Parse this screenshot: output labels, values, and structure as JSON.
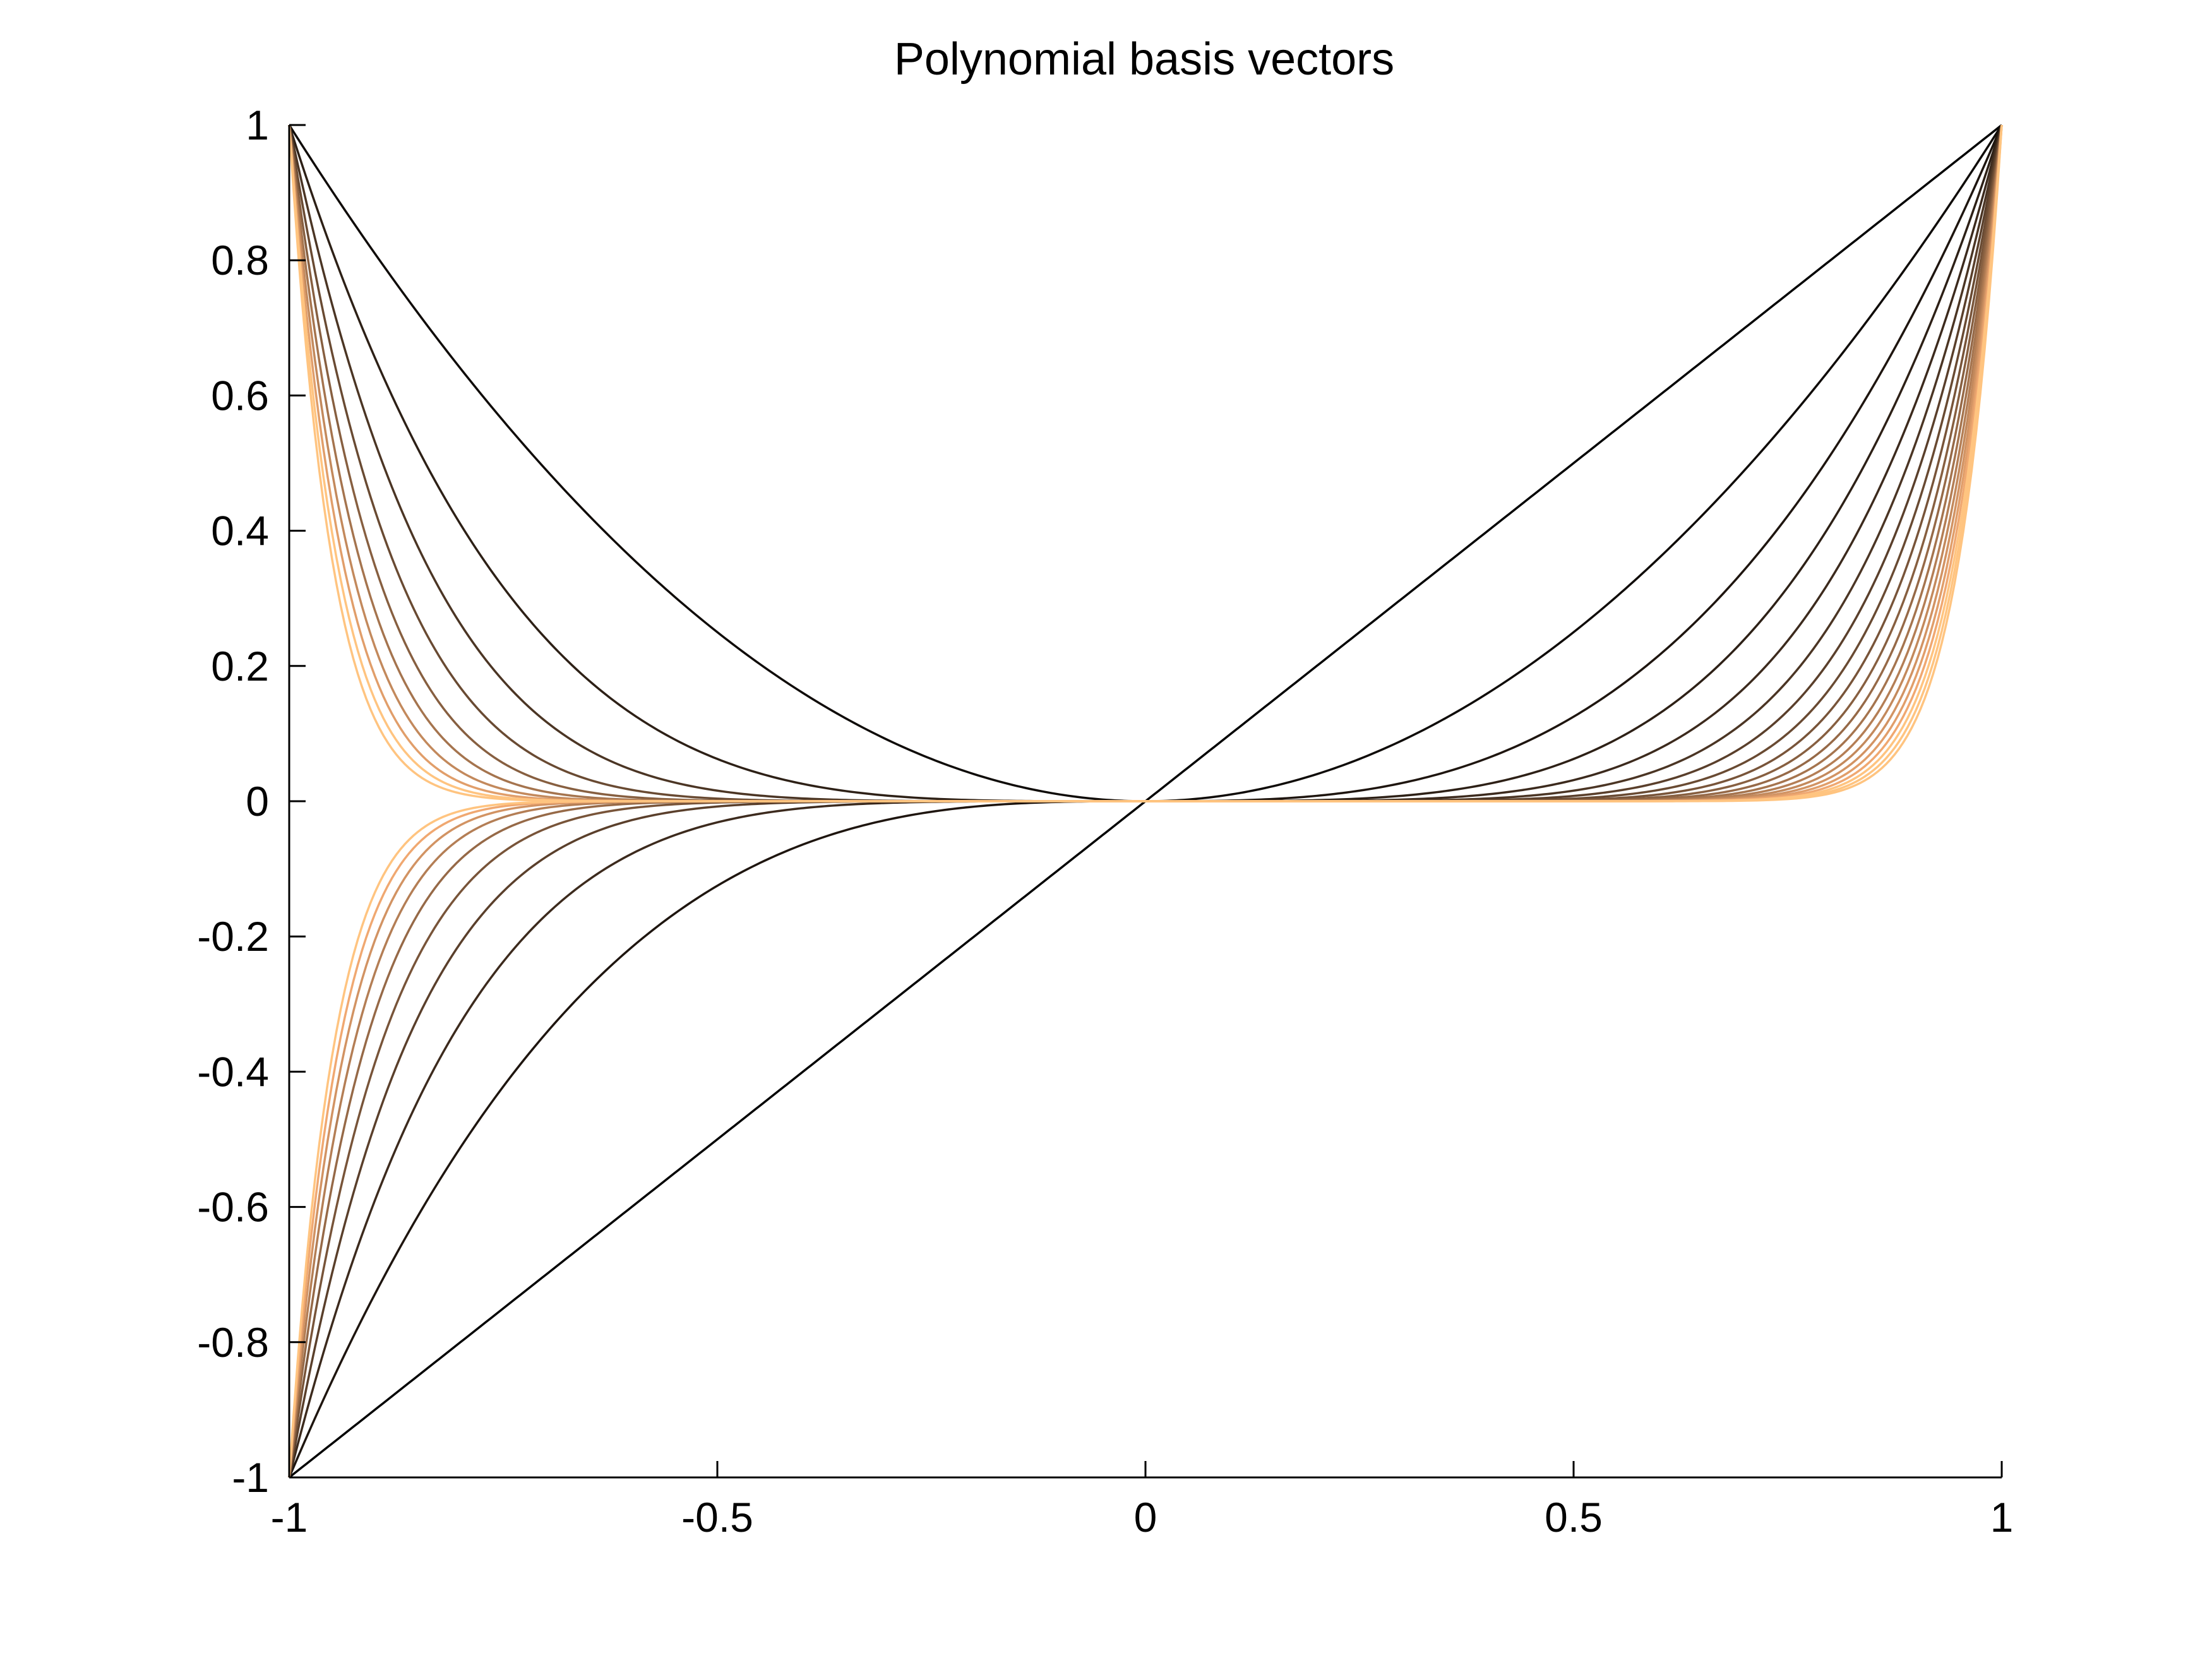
{
  "chart_data": {
    "type": "line",
    "title": "Polynomial basis vectors",
    "xlabel": "",
    "ylabel": "",
    "xlim": [
      -1,
      1
    ],
    "ylim": [
      -1,
      1
    ],
    "x_ticks": [
      "-1",
      "-0.5",
      "0",
      "0.5",
      "1"
    ],
    "x_tick_values": [
      -1,
      -0.5,
      0,
      0.5,
      1
    ],
    "y_ticks": [
      "1",
      "0.8",
      "0.6",
      "0.4",
      "0.2",
      "0",
      "-0.2",
      "-0.4",
      "-0.6",
      "-0.8",
      "-1"
    ],
    "y_tick_values": [
      1,
      0.8,
      0.6,
      0.4,
      0.2,
      0,
      -0.2,
      -0.4,
      -0.6,
      -0.8,
      -1
    ],
    "grid": false,
    "legend": "none",
    "x": [
      -1,
      -0.95,
      -0.9,
      -0.85,
      -0.8,
      -0.75,
      -0.7,
      -0.65,
      -0.6,
      -0.55,
      -0.5,
      -0.45,
      -0.4,
      -0.35,
      -0.3,
      -0.25,
      -0.2,
      -0.15,
      -0.1,
      -0.05,
      0,
      0.05,
      0.1,
      0.15,
      0.2,
      0.25,
      0.3,
      0.35,
      0.4,
      0.45,
      0.5,
      0.55,
      0.6,
      0.65,
      0.7,
      0.75,
      0.8,
      0.85,
      0.9,
      0.95,
      1
    ],
    "series": [
      {
        "exponent": 1,
        "color": "#000000",
        "values": [
          -1,
          -0.95,
          -0.9,
          -0.85,
          -0.8,
          -0.75,
          -0.7,
          -0.65,
          -0.6,
          -0.55,
          -0.5,
          -0.45,
          -0.4,
          -0.35,
          -0.3,
          -0.25,
          -0.2,
          -0.15,
          -0.1,
          -0.05,
          0,
          0.05,
          0.1,
          0.15,
          0.2,
          0.25,
          0.3,
          0.35,
          0.4,
          0.45,
          0.5,
          0.55,
          0.6,
          0.65,
          0.7,
          0.75,
          0.8,
          0.85,
          0.9,
          0.95,
          1
        ]
      },
      {
        "exponent": 2,
        "color": "#0f0b08",
        "values": [
          1,
          0.9025,
          0.81,
          0.7225,
          0.64,
          0.5625,
          0.49,
          0.4225,
          0.36,
          0.3025,
          0.25,
          0.2025,
          0.16,
          0.1225,
          0.09,
          0.0625,
          0.04,
          0.0225,
          0.01,
          0.0025,
          0,
          0.0025,
          0.01,
          0.0225,
          0.04,
          0.0625,
          0.09,
          0.1225,
          0.16,
          0.2025,
          0.25,
          0.3025,
          0.36,
          0.4225,
          0.49,
          0.5625,
          0.64,
          0.7225,
          0.81,
          0.9025,
          1
        ]
      },
      {
        "exponent": 3,
        "color": "#1e150f",
        "values": [
          -1,
          -0.857,
          -0.729,
          -0.614,
          -0.512,
          -0.422,
          -0.343,
          -0.275,
          -0.216,
          -0.166,
          -0.125,
          -0.091,
          -0.064,
          -0.043,
          -0.027,
          -0.016,
          -0.008,
          -0.003,
          -0.001,
          -0.0001,
          0,
          0.0001,
          0.001,
          0.003,
          0.008,
          0.016,
          0.027,
          0.043,
          0.064,
          0.091,
          0.125,
          0.166,
          0.216,
          0.275,
          0.343,
          0.422,
          0.512,
          0.614,
          0.729,
          0.857,
          1
        ]
      },
      {
        "exponent": 4,
        "color": "#2d2016",
        "values": [
          1,
          0.815,
          0.656,
          0.522,
          0.41,
          0.316,
          0.24,
          0.179,
          0.13,
          0.092,
          0.063,
          0.041,
          0.026,
          0.015,
          0.008,
          0.004,
          0.002,
          0.001,
          0.0001,
          0,
          0,
          0,
          0.0001,
          0.001,
          0.002,
          0.004,
          0.008,
          0.015,
          0.026,
          0.041,
          0.063,
          0.092,
          0.13,
          0.179,
          0.24,
          0.316,
          0.41,
          0.522,
          0.656,
          0.815,
          1
        ]
      },
      {
        "exponent": 5,
        "color": "#3c2a1d",
        "values": [
          -1,
          -0.774,
          -0.59,
          -0.444,
          -0.328,
          -0.237,
          -0.168,
          -0.116,
          -0.078,
          -0.05,
          -0.031,
          -0.018,
          -0.01,
          -0.005,
          -0.002,
          -0.001,
          -0.0003,
          -0.0001,
          0,
          0,
          0,
          0,
          0,
          0.0001,
          0.0003,
          0.001,
          0.002,
          0.005,
          0.01,
          0.018,
          0.031,
          0.05,
          0.078,
          0.116,
          0.168,
          0.237,
          0.328,
          0.444,
          0.59,
          0.774,
          1
        ]
      },
      {
        "exponent": 6,
        "color": "#4b3524",
        "values": [
          1,
          0.735,
          0.531,
          0.377,
          0.262,
          0.178,
          0.118,
          0.075,
          0.047,
          0.028,
          0.016,
          0.008,
          0.004,
          0.002,
          0.001,
          0.0002,
          0.0001,
          0,
          0,
          0,
          0,
          0,
          0,
          0,
          0.0001,
          0.0002,
          0.001,
          0.002,
          0.004,
          0.008,
          0.016,
          0.028,
          0.047,
          0.075,
          0.118,
          0.178,
          0.262,
          0.377,
          0.531,
          0.735,
          1
        ]
      },
      {
        "exponent": 7,
        "color": "#5a3f2b",
        "values": [
          -1,
          -0.698,
          -0.478,
          -0.321,
          -0.21,
          -0.133,
          -0.082,
          -0.049,
          -0.028,
          -0.015,
          -0.008,
          -0.004,
          -0.002,
          -0.001,
          -0.0002,
          -0.0001,
          0,
          0,
          0,
          0,
          0,
          0,
          0,
          0,
          0,
          0.0001,
          0.0002,
          0.001,
          0.002,
          0.004,
          0.008,
          0.015,
          0.028,
          0.049,
          0.082,
          0.133,
          0.21,
          0.321,
          0.478,
          0.698,
          1
        ]
      },
      {
        "exponent": 8,
        "color": "#694a32",
        "values": [
          1,
          0.663,
          0.43,
          0.272,
          0.168,
          0.1,
          0.058,
          0.032,
          0.017,
          0.008,
          0.004,
          0.002,
          0.001,
          0.0002,
          0.0001,
          0,
          0,
          0,
          0,
          0,
          0,
          0,
          0,
          0,
          0,
          0,
          0.0001,
          0.0002,
          0.001,
          0.002,
          0.004,
          0.008,
          0.017,
          0.032,
          0.058,
          0.1,
          0.168,
          0.272,
          0.43,
          0.663,
          1
        ]
      },
      {
        "exponent": 9,
        "color": "#785439",
        "values": [
          -1,
          -0.63,
          -0.387,
          -0.232,
          -0.134,
          -0.075,
          -0.04,
          -0.021,
          -0.01,
          -0.005,
          -0.002,
          -0.001,
          -0.0003,
          -0.0001,
          0,
          0,
          0,
          0,
          0,
          0,
          0,
          0,
          0,
          0,
          0,
          0,
          0,
          0.0001,
          0.0003,
          0.001,
          0.002,
          0.005,
          0.01,
          0.021,
          0.04,
          0.075,
          0.134,
          0.232,
          0.387,
          0.63,
          1
        ]
      },
      {
        "exponent": 10,
        "color": "#875f40",
        "values": [
          1,
          0.599,
          0.349,
          0.197,
          0.107,
          0.056,
          0.028,
          0.013,
          0.006,
          0.003,
          0.001,
          0.0003,
          0.0001,
          0,
          0,
          0,
          0,
          0,
          0,
          0,
          0,
          0,
          0,
          0,
          0,
          0,
          0,
          0,
          0.0001,
          0.0003,
          0.001,
          0.003,
          0.006,
          0.013,
          0.028,
          0.056,
          0.107,
          0.197,
          0.349,
          0.599,
          1
        ]
      },
      {
        "exponent": 11,
        "color": "#966947",
        "values": [
          -1,
          -0.569,
          -0.314,
          -0.167,
          -0.086,
          -0.042,
          -0.02,
          -0.009,
          -0.004,
          -0.001,
          -0.0005,
          -0.0002,
          0,
          0,
          0,
          0,
          0,
          0,
          0,
          0,
          0,
          0,
          0,
          0,
          0,
          0,
          0,
          0,
          0,
          0.0002,
          0.0005,
          0.001,
          0.004,
          0.009,
          0.02,
          0.042,
          0.086,
          0.167,
          0.314,
          0.569,
          1
        ]
      },
      {
        "exponent": 12,
        "color": "#a5744e",
        "values": [
          1,
          0.54,
          0.282,
          0.142,
          0.069,
          0.032,
          0.014,
          0.006,
          0.002,
          0.001,
          0.0002,
          0.0001,
          0,
          0,
          0,
          0,
          0,
          0,
          0,
          0,
          0,
          0,
          0,
          0,
          0,
          0,
          0,
          0,
          0,
          0.0001,
          0.0002,
          0.001,
          0.002,
          0.006,
          0.014,
          0.032,
          0.069,
          0.142,
          0.282,
          0.54,
          1
        ]
      },
      {
        "exponent": 13,
        "color": "#b47e55",
        "values": [
          -1,
          -0.513,
          -0.254,
          -0.121,
          -0.055,
          -0.024,
          -0.01,
          -0.004,
          -0.001,
          -0.0004,
          -0.0001,
          0,
          0,
          0,
          0,
          0,
          0,
          0,
          0,
          0,
          0,
          0,
          0,
          0,
          0,
          0,
          0,
          0,
          0,
          0,
          0.0001,
          0.0004,
          0.001,
          0.004,
          0.01,
          0.024,
          0.055,
          0.121,
          0.254,
          0.513,
          1
        ]
      },
      {
        "exponent": 14,
        "color": "#c3895c",
        "values": [
          1,
          0.488,
          0.229,
          0.103,
          0.044,
          0.018,
          0.007,
          0.002,
          0.001,
          0.0002,
          0.0001,
          0,
          0,
          0,
          0,
          0,
          0,
          0,
          0,
          0,
          0,
          0,
          0,
          0,
          0,
          0,
          0,
          0,
          0,
          0,
          0.0001,
          0.0002,
          0.001,
          0.002,
          0.007,
          0.018,
          0.044,
          0.103,
          0.229,
          0.488,
          1
        ]
      },
      {
        "exponent": 15,
        "color": "#d29363",
        "values": [
          -1,
          -0.463,
          -0.206,
          -0.087,
          -0.035,
          -0.013,
          -0.005,
          -0.002,
          -0.0005,
          -0.0001,
          0,
          0,
          0,
          0,
          0,
          0,
          0,
          0,
          0,
          0,
          0,
          0,
          0,
          0,
          0,
          0,
          0,
          0,
          0,
          0,
          0,
          0.0001,
          0.0005,
          0.002,
          0.005,
          0.013,
          0.035,
          0.087,
          0.206,
          0.463,
          1
        ]
      },
      {
        "exponent": 16,
        "color": "#e19e6a",
        "values": [
          1,
          0.44,
          0.185,
          0.074,
          0.028,
          0.01,
          0.003,
          0.001,
          0.0003,
          0.0001,
          0,
          0,
          0,
          0,
          0,
          0,
          0,
          0,
          0,
          0,
          0,
          0,
          0,
          0,
          0,
          0,
          0,
          0,
          0,
          0,
          0,
          0.0001,
          0.0003,
          0.001,
          0.003,
          0.01,
          0.028,
          0.074,
          0.185,
          0.44,
          1
        ]
      },
      {
        "exponent": 17,
        "color": "#f0a871",
        "values": [
          -1,
          -0.418,
          -0.167,
          -0.063,
          -0.023,
          -0.008,
          -0.002,
          -0.001,
          -0.0002,
          0,
          0,
          0,
          0,
          0,
          0,
          0,
          0,
          0,
          0,
          0,
          0,
          0,
          0,
          0,
          0,
          0,
          0,
          0,
          0,
          0,
          0,
          0,
          0.0002,
          0.001,
          0.002,
          0.008,
          0.023,
          0.063,
          0.167,
          0.418,
          1
        ]
      },
      {
        "exponent": 18,
        "color": "#ffc480",
        "values": [
          1,
          0.397,
          0.15,
          0.054,
          0.018,
          0.006,
          0.002,
          0.0004,
          0.0001,
          0,
          0,
          0,
          0,
          0,
          0,
          0,
          0,
          0,
          0,
          0,
          0,
          0,
          0,
          0,
          0,
          0,
          0,
          0,
          0,
          0,
          0,
          0,
          0.0001,
          0.0004,
          0.002,
          0.006,
          0.018,
          0.054,
          0.15,
          0.397,
          1
        ]
      },
      {
        "exponent": 19,
        "color": "#ffc480",
        "values": [
          -1,
          -0.377,
          -0.135,
          -0.046,
          -0.014,
          -0.004,
          -0.001,
          -0.0003,
          0,
          0,
          0,
          0,
          0,
          0,
          0,
          0,
          0,
          0,
          0,
          0,
          0,
          0,
          0,
          0,
          0,
          0,
          0,
          0,
          0,
          0,
          0,
          0,
          0,
          0.0003,
          0.001,
          0.004,
          0.014,
          0.046,
          0.135,
          0.377,
          1
        ]
      },
      {
        "exponent": 20,
        "color": "#ffc480",
        "values": [
          1,
          0.358,
          0.122,
          0.039,
          0.012,
          0.003,
          0.001,
          0.0002,
          0,
          0,
          0,
          0,
          0,
          0,
          0,
          0,
          0,
          0,
          0,
          0,
          0,
          0,
          0,
          0,
          0,
          0,
          0,
          0,
          0,
          0,
          0,
          0,
          0,
          0.0002,
          0.001,
          0.003,
          0.012,
          0.039,
          0.122,
          0.358,
          1
        ]
      }
    ]
  }
}
